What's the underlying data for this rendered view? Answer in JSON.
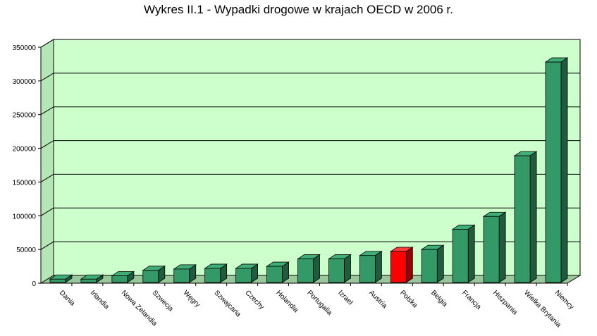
{
  "chart_data": {
    "type": "bar",
    "title": "Wykres II.1 - Wypadki drogowe w krajach OECD w 2006 r.",
    "xlabel": "",
    "ylabel": "",
    "ylim": [
      0,
      350000
    ],
    "y_ticks": [
      0,
      50000,
      100000,
      150000,
      200000,
      250000,
      300000,
      350000
    ],
    "y_tick_labels": [
      "0",
      "50000",
      "100000",
      "150000",
      "200000",
      "250000",
      "300000",
      "350000"
    ],
    "grid": true,
    "three_d": true,
    "categories": [
      "Dania",
      "Irlandia",
      "Nowa Zelandia",
      "Szwecja",
      "Węgry",
      "Szwajcaria",
      "Czechy",
      "Holandia",
      "Portugalia",
      "Izrael",
      "Austria",
      "Polska",
      "Belgia",
      "Francja",
      "Hiszpania",
      "Wielka Brytania",
      "Niemcy"
    ],
    "values": [
      6000,
      6000,
      11000,
      19000,
      21000,
      22000,
      22000,
      25000,
      36000,
      36000,
      41000,
      47000,
      50000,
      80000,
      99000,
      189000,
      328000
    ],
    "highlight_category": "Polska",
    "colors": {
      "bar": "#339966",
      "bar_top": "#3fae77",
      "bar_side": "#1e5c3d",
      "highlight": "#ff0000",
      "highlight_top": "#ff3a3a",
      "highlight_side": "#990000",
      "plot_back": "#ccffcc",
      "plot_floor": "#9ac89a",
      "plot_wall_left": "#b5e6b5",
      "grid": "#000000"
    }
  }
}
